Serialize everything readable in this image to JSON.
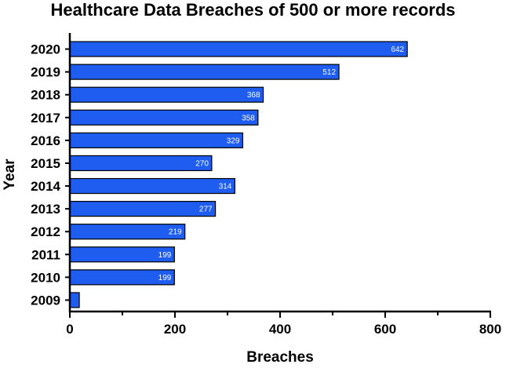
{
  "chart_data": {
    "type": "bar",
    "orientation": "horizontal",
    "title": "Healthcare Data Breaches of 500 or more records",
    "xlabel": "Breaches",
    "ylabel": "Year",
    "categories": [
      "2020",
      "2019",
      "2018",
      "2017",
      "2016",
      "2015",
      "2014",
      "2013",
      "2012",
      "2011",
      "2010",
      "2009"
    ],
    "values": [
      642,
      512,
      368,
      358,
      329,
      270,
      314,
      277,
      219,
      199,
      199,
      18
    ],
    "data_labels": [
      "642",
      "512",
      "368",
      "358",
      "329",
      "270",
      "314",
      "277",
      "219",
      "199",
      "199",
      ""
    ],
    "xlim": [
      0,
      800
    ],
    "x_ticks": [
      0,
      200,
      400,
      600,
      800
    ],
    "x_tick_labels": [
      "0",
      "200",
      "400",
      "600",
      "800"
    ],
    "bar_color": "#1f5cf0",
    "grid": false,
    "legend": "none"
  }
}
